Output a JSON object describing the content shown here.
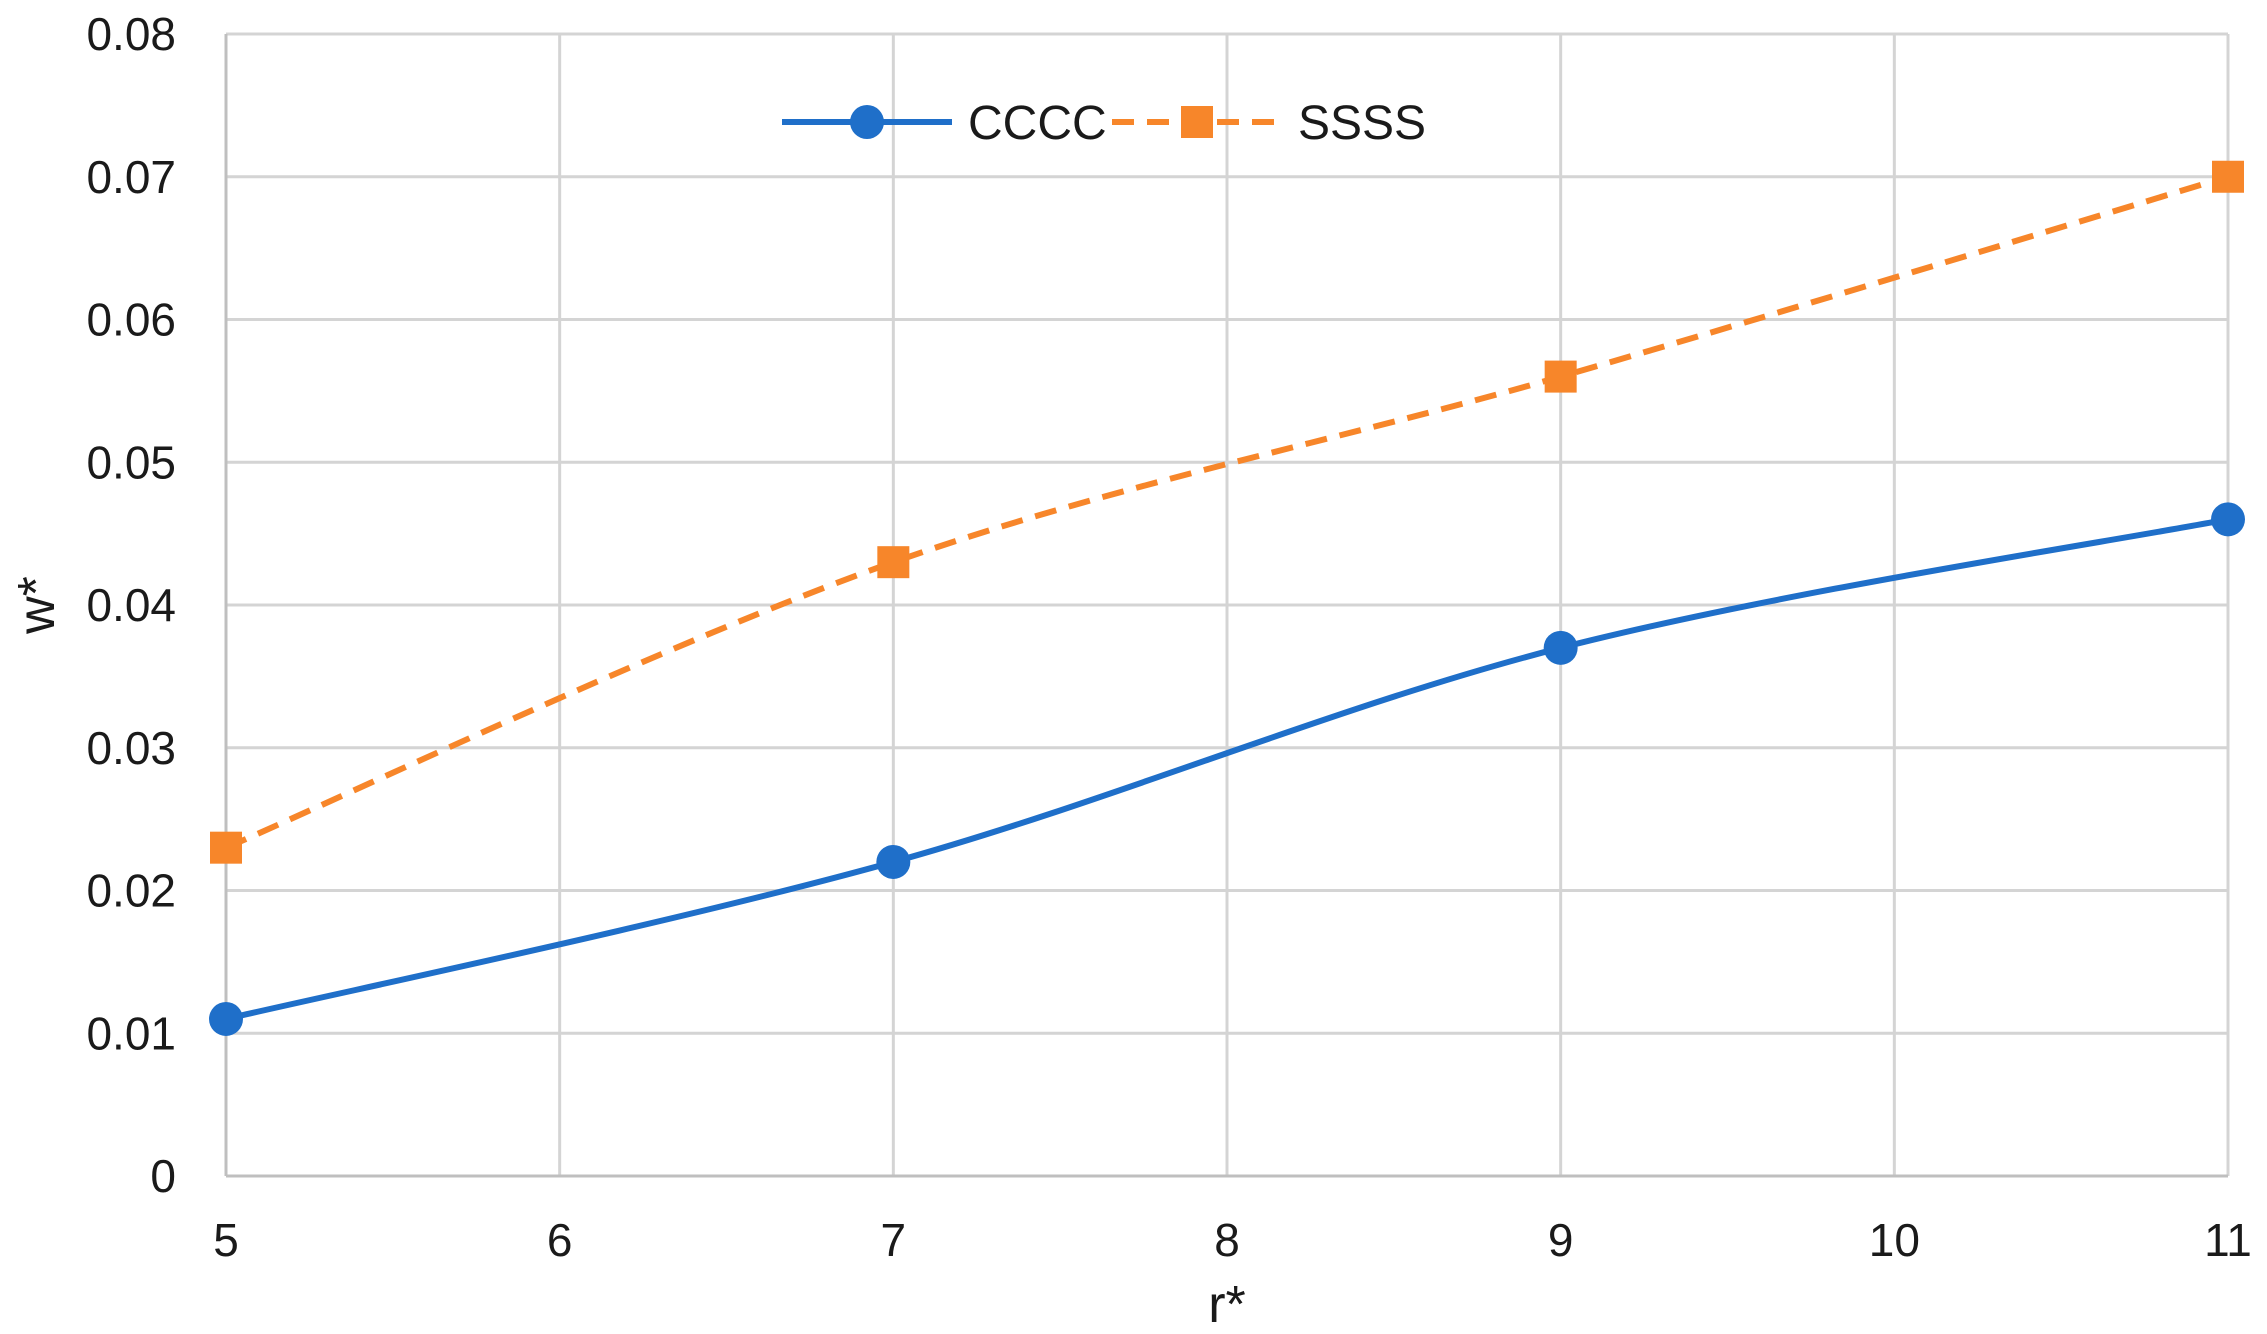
{
  "chart_data": {
    "type": "line",
    "title": "",
    "xlabel": "r*",
    "ylabel": "w*",
    "xlim": [
      5,
      11
    ],
    "ylim": [
      0,
      0.08
    ],
    "xticks": [
      "5",
      "6",
      "7",
      "8",
      "9",
      "10",
      "11"
    ],
    "yticks": [
      "0",
      "0.01",
      "0.02",
      "0.03",
      "0.04",
      "0.05",
      "0.06",
      "0.07",
      "0.08"
    ],
    "grid": true,
    "smooth": true,
    "legend_position": "top-center",
    "series": [
      {
        "name": "CCCC",
        "color": "#1f6fc9",
        "dash": "solid",
        "marker": "circle",
        "x": [
          5,
          7,
          9,
          11
        ],
        "values": [
          0.011,
          0.022,
          0.037,
          0.046
        ]
      },
      {
        "name": "SSSS",
        "color": "#f7862a",
        "dash": "dashed",
        "marker": "square",
        "x": [
          5,
          7,
          9,
          11
        ],
        "values": [
          0.023,
          0.043,
          0.056,
          0.07
        ]
      }
    ]
  }
}
